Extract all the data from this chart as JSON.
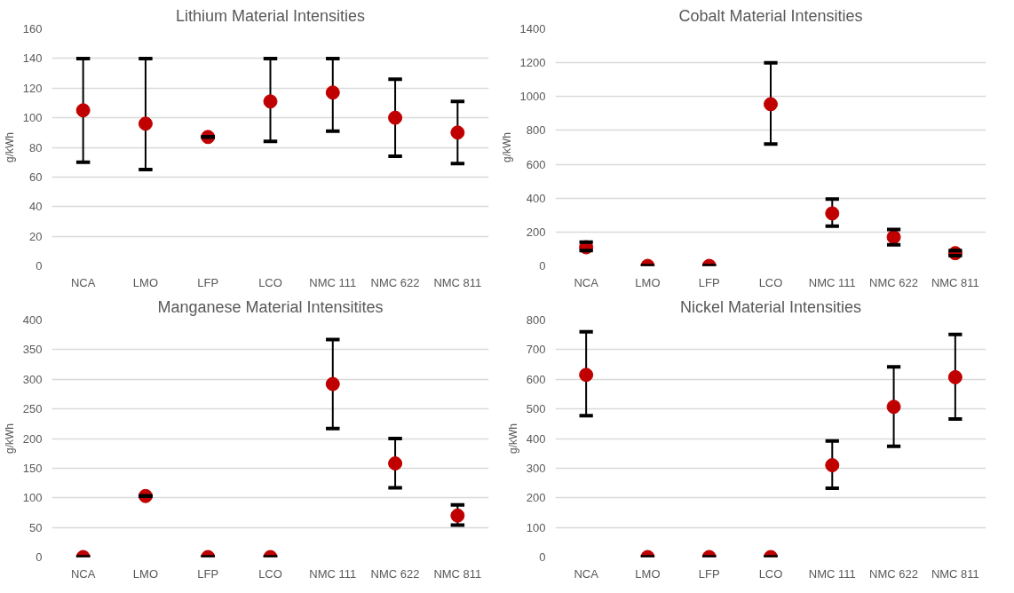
{
  "chart_data": [
    {
      "type": "scatter",
      "title": "Lithium Material Intensities",
      "ylabel": "g/kWh",
      "categories": [
        "NCA",
        "LMO",
        "LFP",
        "LCO",
        "NMC 111",
        "NMC 622",
        "NMC 811"
      ],
      "ylim": [
        0,
        160
      ],
      "yticks": [
        0,
        20,
        40,
        60,
        80,
        100,
        120,
        140,
        160
      ],
      "grid": "y",
      "marker": "circle",
      "series": [
        {
          "color": "#c00000",
          "values": [
            105,
            96,
            87,
            111,
            117,
            100,
            90
          ],
          "errors": [
            [
              70,
              140
            ],
            [
              65,
              140
            ],
            [
              87,
              87
            ],
            [
              84,
              140
            ],
            [
              91,
              140
            ],
            [
              74,
              126
            ],
            [
              69,
              111
            ]
          ]
        }
      ]
    },
    {
      "type": "scatter",
      "title": "Cobalt Material Intensities",
      "ylabel": "g/kWh",
      "categories": [
        "NCA",
        "LMO",
        "LFP",
        "LCO",
        "NMC 111",
        "NMC 622",
        "NMC 811"
      ],
      "ylim": [
        0,
        1400
      ],
      "yticks": [
        0,
        200,
        400,
        600,
        800,
        1000,
        1200,
        1400
      ],
      "grid": "y",
      "marker": "circle",
      "series": [
        {
          "color": "#c00000",
          "values": [
            110,
            0,
            0,
            955,
            310,
            170,
            75
          ],
          "errors": [
            [
              90,
              140
            ],
            [
              0,
              0
            ],
            [
              0,
              0
            ],
            [
              720,
              1200
            ],
            [
              235,
              395
            ],
            [
              125,
              215
            ],
            [
              60,
              90
            ]
          ]
        }
      ]
    },
    {
      "type": "scatter",
      "title": "Manganese Material Intensitites",
      "ylabel": "g/kWh",
      "categories": [
        "NCA",
        "LMO",
        "LFP",
        "LCO",
        "NMC 111",
        "NMC 622",
        "NMC 811"
      ],
      "ylim": [
        0,
        400
      ],
      "yticks": [
        0,
        50,
        100,
        150,
        200,
        250,
        300,
        350,
        400
      ],
      "grid": "y",
      "marker": "circle",
      "series": [
        {
          "color": "#c00000",
          "values": [
            0,
            103,
            0,
            0,
            292,
            158,
            70
          ],
          "errors": [
            [
              0,
              0
            ],
            [
              103,
              103
            ],
            [
              0,
              0
            ],
            [
              0,
              0
            ],
            [
              217,
              367
            ],
            [
              117,
              200
            ],
            [
              54,
              88
            ]
          ]
        }
      ]
    },
    {
      "type": "scatter",
      "title": "Nickel Material Intensities",
      "ylabel": "g/kWh",
      "categories": [
        "NCA",
        "LMO",
        "LFP",
        "LCO",
        "NMC 111",
        "NMC 622",
        "NMC 811"
      ],
      "ylim": [
        0,
        800
      ],
      "yticks": [
        0,
        100,
        200,
        300,
        400,
        500,
        600,
        700,
        800
      ],
      "grid": "y",
      "marker": "circle",
      "series": [
        {
          "color": "#c00000",
          "values": [
            615,
            0,
            0,
            0,
            310,
            507,
            607
          ],
          "errors": [
            [
              477,
              760
            ],
            [
              0,
              0
            ],
            [
              0,
              0
            ],
            [
              0,
              0
            ],
            [
              232,
              392
            ],
            [
              374,
              642
            ],
            [
              466,
              751
            ]
          ]
        }
      ]
    }
  ]
}
